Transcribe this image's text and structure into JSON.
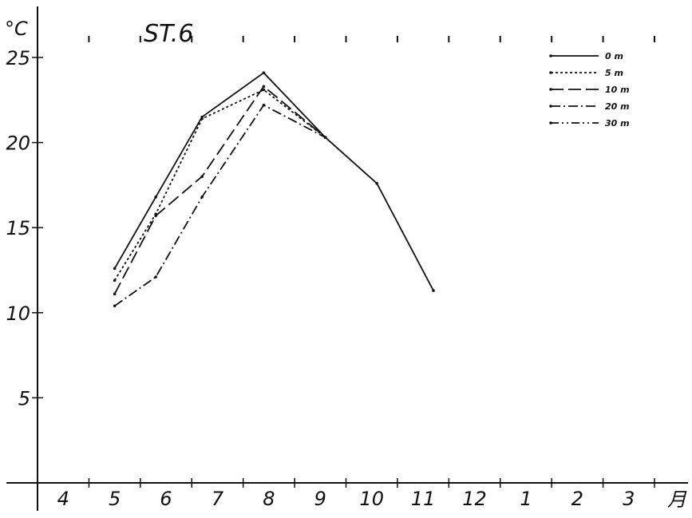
{
  "chart_data": {
    "type": "line",
    "title": "ST.6",
    "ylabel": "°C",
    "xlabel": "月",
    "categories": [
      "4",
      "5",
      "6",
      "7",
      "8",
      "9",
      "10",
      "11",
      "12",
      "1",
      "2",
      "3"
    ],
    "yticks": [
      "25",
      "20",
      "15",
      "10",
      "5"
    ],
    "ylim": [
      0,
      25
    ],
    "grid": false,
    "legend_position": "top-right",
    "series": [
      {
        "name": "0 m",
        "dash": "solid",
        "x": [
          5.5,
          6.3,
          7.2,
          8.4,
          9.6,
          10.6,
          11.7
        ],
        "values": [
          12.6,
          16.8,
          21.5,
          24.1,
          20.3,
          17.6,
          11.3
        ]
      },
      {
        "name": "5 m",
        "dash": "dotted",
        "x": [
          5.5,
          6.3,
          7.2,
          8.4,
          9.6
        ],
        "values": [
          11.9,
          15.8,
          21.4,
          23.1,
          20.3
        ]
      },
      {
        "name": "10 m",
        "dash": "long-dash",
        "x": [
          5.5,
          6.3,
          7.2,
          8.4,
          9.6
        ],
        "values": [
          11.1,
          15.7,
          18.0,
          23.3,
          20.3
        ]
      },
      {
        "name": "20 m",
        "dash": "dash-dot",
        "x": [
          5.5,
          6.3,
          7.2,
          8.4,
          9.6
        ],
        "values": [
          10.4,
          12.1,
          16.8,
          22.2,
          20.3
        ]
      },
      {
        "name": "30 m",
        "dash": "dash-dot2",
        "x": [],
        "values": []
      }
    ]
  }
}
